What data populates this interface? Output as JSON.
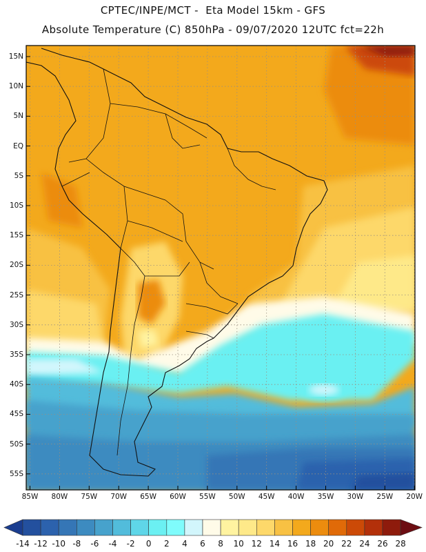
{
  "header": {
    "line1": "CPTEC/INPE/MCT -  Eta Model 15km - GFS",
    "line2": "Absolute Temperature (C) 850hPa - 09/07/2020 12UTC fct=22h"
  },
  "axes": {
    "lat_labels": [
      "15N",
      "10N",
      "5N",
      "EQ",
      "5S",
      "10S",
      "15S",
      "20S",
      "25S",
      "30S",
      "35S",
      "40S",
      "45S",
      "50S",
      "55S"
    ],
    "lon_labels": [
      "85W",
      "80W",
      "75W",
      "70W",
      "65W",
      "60W",
      "55W",
      "50W",
      "45W",
      "40W",
      "35W",
      "30W",
      "25W",
      "20W"
    ]
  },
  "colorbar": {
    "labels": [
      "-14",
      "-12",
      "-10",
      "-8",
      "-6",
      "-4",
      "-2",
      "0",
      "2",
      "4",
      "6",
      "8",
      "10",
      "12",
      "14",
      "16",
      "18",
      "20",
      "22",
      "24",
      "26",
      "28"
    ],
    "colors": [
      "#1a3d8f",
      "#23509e",
      "#2c62ad",
      "#3576b6",
      "#3d8bc0",
      "#47a2cc",
      "#52bcdb",
      "#5fd6e8",
      "#6bf0f2",
      "#7ffcfc",
      "#d2f6fc",
      "#fffbe8",
      "#fff3a0",
      "#fee989",
      "#fdd86a",
      "#f8c143",
      "#f3a91c",
      "#ec8c0e",
      "#e06a08",
      "#cc4a07",
      "#b3300a",
      "#8e1b0c",
      "#6c0d12"
    ]
  }
}
